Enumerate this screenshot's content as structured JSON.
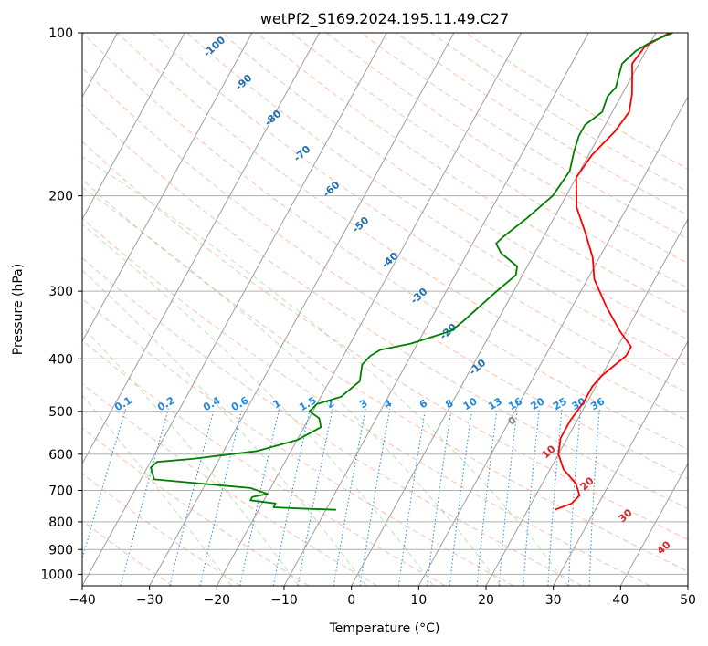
{
  "chart_data": {
    "type": "line",
    "title": "wetPf2_S169.2024.195.11.49.C27",
    "xlabel": "Temperature (°C)",
    "ylabel": "Pressure (hPa)",
    "xlim": [
      -40,
      50
    ],
    "ylim": [
      1050,
      100
    ],
    "y_scale": "log",
    "grid": true,
    "x_ticks": [
      "−40",
      "−30",
      "−20",
      "−10",
      "0",
      "10",
      "20",
      "30",
      "40",
      "50"
    ],
    "x_tick_values": [
      -40,
      -30,
      -20,
      -10,
      0,
      10,
      20,
      30,
      40,
      50
    ],
    "y_ticks": [
      "100",
      "200",
      "300",
      "400",
      "500",
      "600",
      "700",
      "800",
      "900",
      "1000"
    ],
    "y_tick_values": [
      100,
      200,
      300,
      400,
      500,
      600,
      700,
      800,
      900,
      1000
    ],
    "series": [
      {
        "role": "temperature",
        "color": "#ff0000",
        "points": [
          [
            24.0,
            760
          ],
          [
            26.0,
            740
          ],
          [
            26.5,
            715
          ],
          [
            25.0,
            680
          ],
          [
            22.0,
            640
          ],
          [
            20.0,
            600
          ],
          [
            19.0,
            560
          ],
          [
            19.0,
            520
          ],
          [
            19.5,
            480
          ],
          [
            19.5,
            450
          ],
          [
            20.0,
            430
          ],
          [
            22.0,
            395
          ],
          [
            22.0,
            380
          ],
          [
            19.0,
            355
          ],
          [
            15.0,
            320
          ],
          [
            11.0,
            285
          ],
          [
            9.0,
            260
          ],
          [
            6.0,
            235
          ],
          [
            2.5,
            210
          ],
          [
            0.0,
            185
          ],
          [
            0.5,
            168
          ],
          [
            2.0,
            152
          ],
          [
            2.5,
            140
          ],
          [
            1.5,
            130
          ],
          [
            0.0,
            120
          ],
          [
            -1.0,
            114
          ],
          [
            -0.5,
            106
          ],
          [
            2.0,
            100
          ]
        ]
      },
      {
        "role": "dewpoint",
        "color": "#008000",
        "points": [
          [
            -8.5,
            760
          ],
          [
            -14.0,
            756
          ],
          [
            -18.0,
            752
          ],
          [
            -18.0,
            740
          ],
          [
            -22.0,
            730
          ],
          [
            -22.0,
            720
          ],
          [
            -20.0,
            710
          ],
          [
            -23.0,
            693
          ],
          [
            -38.0,
            668
          ],
          [
            -39.5,
            635
          ],
          [
            -39.0,
            620
          ],
          [
            -34.0,
            612
          ],
          [
            -25.0,
            592
          ],
          [
            -20.0,
            565
          ],
          [
            -17.5,
            535
          ],
          [
            -18.5,
            515
          ],
          [
            -20.5,
            500
          ],
          [
            -20.0,
            485
          ],
          [
            -17.0,
            470
          ],
          [
            -15.5,
            440
          ],
          [
            -16.5,
            410
          ],
          [
            -16.0,
            395
          ],
          [
            -15.0,
            385
          ],
          [
            -11.0,
            375
          ],
          [
            -6.0,
            355
          ],
          [
            -5.0,
            340
          ],
          [
            -2.5,
            300
          ],
          [
            -1.0,
            280
          ],
          [
            -1.5,
            270
          ],
          [
            -5.0,
            255
          ],
          [
            -6.5,
            245
          ],
          [
            -6.0,
            238
          ],
          [
            -4.0,
            220
          ],
          [
            -2.0,
            200
          ],
          [
            -1.5,
            180
          ],
          [
            -2.5,
            165
          ],
          [
            -3.0,
            155
          ],
          [
            -3.0,
            148
          ],
          [
            -1.5,
            140
          ],
          [
            -2.0,
            131
          ],
          [
            -1.5,
            126
          ],
          [
            -2.0,
            120
          ],
          [
            -2.5,
            114
          ],
          [
            -1.5,
            108
          ],
          [
            0.0,
            104
          ],
          [
            2.5,
            100
          ]
        ]
      }
    ],
    "dry_adiabat_labels": [
      "-100",
      "-90",
      "-80",
      "-70",
      "-60",
      "-50",
      "-40",
      "-30",
      "-20",
      "-10",
      "0",
      "10",
      "20",
      "30",
      "40"
    ],
    "mixing_ratio_labels": [
      "0.1",
      "0.2",
      "0.4",
      "0.6",
      "1",
      "1.5",
      "2",
      "3",
      "4",
      "6",
      "8",
      "10",
      "13",
      "16",
      "20",
      "25",
      "30",
      "36"
    ]
  },
  "colors": {
    "temperature": "#ff0000",
    "dewpoint": "#008000",
    "dry_adiabat": "#ff8c66",
    "moist_adiabat": "#6cbf6c",
    "mixing_ratio": "#1e88e5",
    "isotherm": "#9e9e9e",
    "isobar": "#b0b0b0",
    "label_cold": "#1f6fb4",
    "label_warm": "#d62728",
    "label_zero": "#8a8a8a"
  }
}
